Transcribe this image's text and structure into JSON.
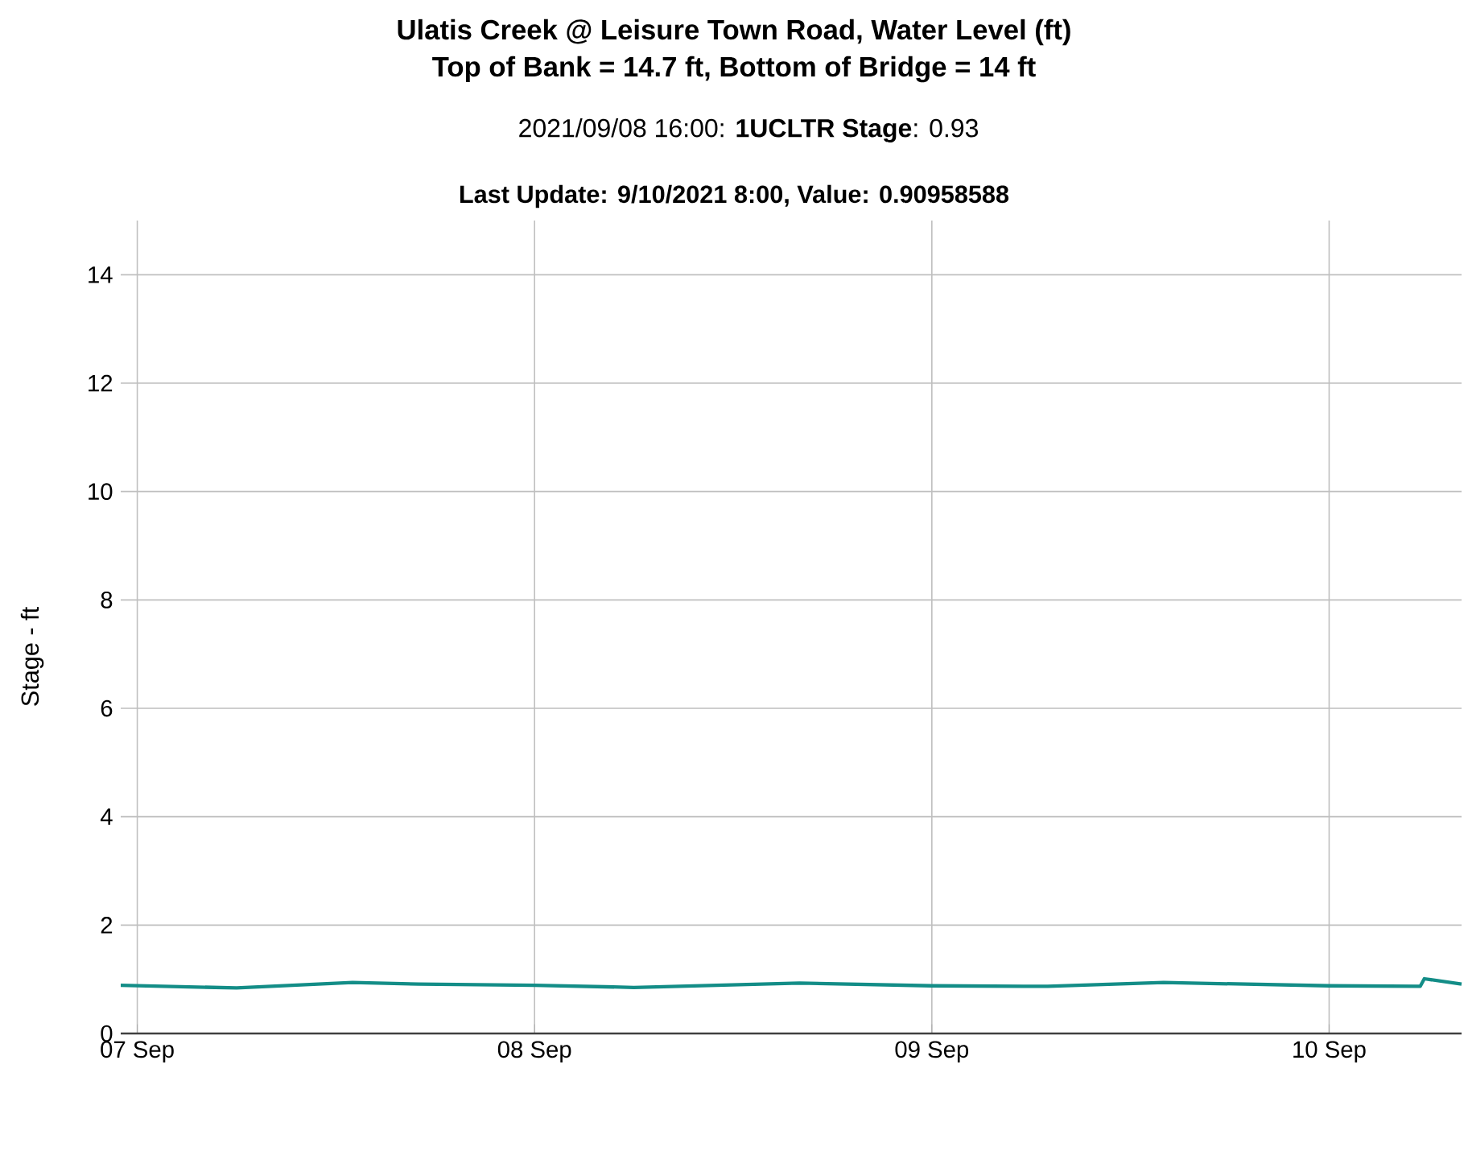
{
  "chart_data": {
    "type": "line",
    "title": "Ulatis Creek @ Leisure Town Road, Water Level (ft)",
    "subtitle": "Top of Bank = 14.7 ft, Bottom of Bridge = 14 ft",
    "ylabel": "Stage - ft",
    "annotations": [
      "2021/09/08 16:00: **1UCLTR Stage**: 0.93",
      "Last Update: 9/10/2021 8:00, Value: 0.90958588"
    ],
    "x": [
      "2021-09-06T23:00",
      "2021-09-07T06:00",
      "2021-09-07T13:00",
      "2021-09-07T17:00",
      "2021-09-08T00:00",
      "2021-09-08T06:00",
      "2021-09-08T16:00",
      "2021-09-09T00:00",
      "2021-09-09T07:00",
      "2021-09-09T14:00",
      "2021-09-10T00:00",
      "2021-09-10T05:30",
      "2021-09-10T05:45",
      "2021-09-10T08:00"
    ],
    "series": [
      {
        "color": "#138d87",
        "values": [
          0.89,
          0.84,
          0.94,
          0.91,
          0.89,
          0.85,
          0.93,
          0.88,
          0.87,
          0.94,
          0.88,
          0.87,
          1.01,
          0.91
        ]
      }
    ],
    "xlim": [
      "2021-09-06T23:00",
      "2021-09-10T08:00"
    ],
    "xticks": [
      {
        "value": "2021-09-07",
        "label": "07 Sep"
      },
      {
        "value": "2021-09-08",
        "label": "08 Sep"
      },
      {
        "value": "2021-09-09",
        "label": "09 Sep"
      },
      {
        "value": "2021-09-10",
        "label": "10 Sep"
      }
    ],
    "ylim": [
      0,
      15
    ],
    "yticks": [
      0,
      2,
      4,
      6,
      8,
      10,
      12,
      14
    ],
    "grid": true,
    "marker": "none",
    "line_style": "solid"
  }
}
